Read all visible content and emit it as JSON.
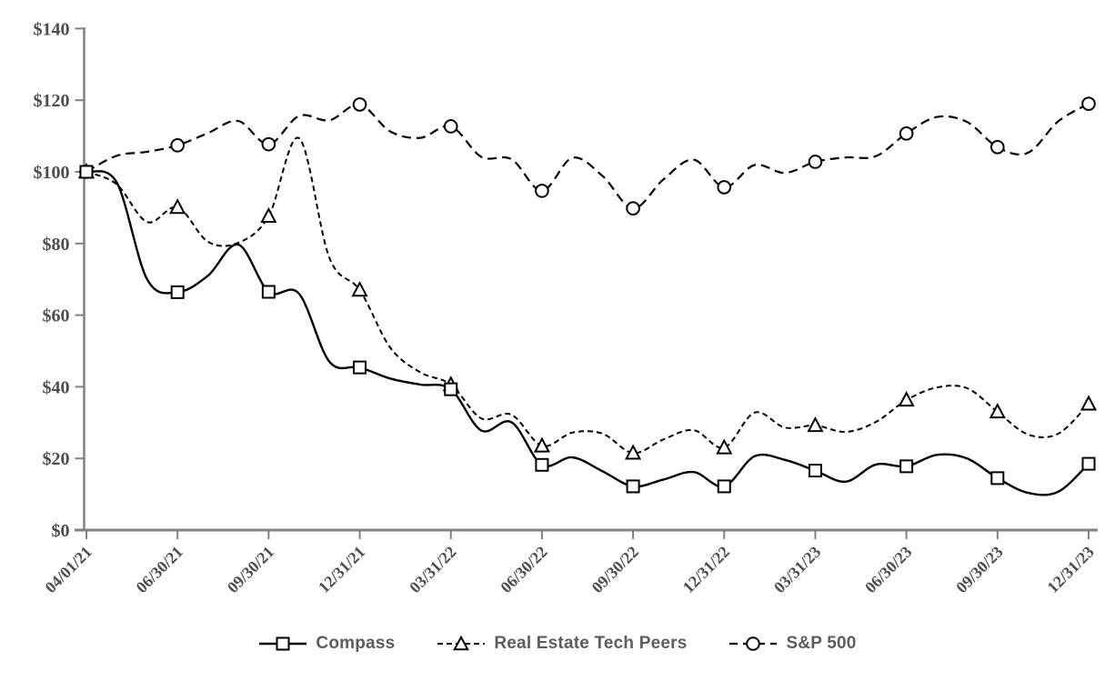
{
  "chart_data": {
    "type": "line",
    "title": "",
    "xlabel": "",
    "ylabel": "",
    "ylim": [
      0,
      140
    ],
    "y_tick_step": 20,
    "y_tick_labels": [
      "$0",
      "$20",
      "$40",
      "$60",
      "$80",
      "$100",
      "$120",
      "$140"
    ],
    "x_tick_labels": [
      "04/01/21",
      "06/30/21",
      "09/30/21",
      "12/31/21",
      "03/31/22",
      "06/30/22",
      "09/30/22",
      "12/31/22",
      "03/31/23",
      "06/30/23",
      "09/30/23",
      "12/31/23"
    ],
    "x_resolution": "monthly",
    "quarter_marker_indices": [
      0,
      3,
      6,
      9,
      12,
      15,
      18,
      21,
      24,
      27,
      30,
      33
    ],
    "grid": "off",
    "legend_position": "bottom-center",
    "series": [
      {
        "name": "Compass",
        "line": "solid",
        "marker": "square",
        "values": [
          100,
          97,
          70,
          66.4,
          71,
          79.7,
          66.5,
          66,
          47,
          45.4,
          42.3,
          40.6,
          39.3,
          27.8,
          30.1,
          18.2,
          20.3,
          16.4,
          12.2,
          14.1,
          16.2,
          12.2,
          20.6,
          19.6,
          16.6,
          13.5,
          18.3,
          17.8,
          21,
          20,
          14.5,
          10.4,
          10.7,
          18.5
        ],
        "quarterly_values": [
          100,
          66.4,
          66.5,
          45.4,
          39.3,
          18.2,
          12.2,
          12.2,
          16.6,
          17.8,
          14.5,
          18.5
        ]
      },
      {
        "name": "Real Estate Tech Peers",
        "line": "dashed",
        "marker": "triangle",
        "values": [
          100,
          96.5,
          86,
          90.1,
          80.5,
          80.2,
          87.6,
          109.4,
          76,
          67,
          51,
          44,
          40.6,
          31.2,
          32.2,
          23.5,
          27.2,
          26.9,
          21.5,
          25.3,
          27.9,
          23,
          32.8,
          28.6,
          29.2,
          27.4,
          30.2,
          36.3,
          39.8,
          39.6,
          33,
          26.7,
          26.9,
          35.2
        ],
        "quarterly_values": [
          100,
          90.1,
          87.6,
          67,
          40.6,
          23.5,
          21.5,
          23,
          29.2,
          36.3,
          33,
          35.2
        ]
      },
      {
        "name": "S&P 500",
        "line": "long-dashed",
        "marker": "circle",
        "values": [
          100,
          104.5,
          105.6,
          107.4,
          110.8,
          114.2,
          107.7,
          115.6,
          114.4,
          118.8,
          111.3,
          109.5,
          112.7,
          104.2,
          103.5,
          94.7,
          103.9,
          98.8,
          89.8,
          97.9,
          103.4,
          95.7,
          101.9,
          99.7,
          102.8,
          104,
          104.4,
          110.7,
          115.3,
          113.9,
          106.9,
          105.3,
          114.1,
          119
        ],
        "quarterly_values": [
          100,
          107.4,
          107.7,
          118.8,
          112.7,
          94.7,
          89.8,
          95.7,
          102.8,
          110.7,
          106.9,
          119
        ]
      }
    ]
  },
  "colors": {
    "series_stroke": "#000000",
    "marker_fill": "#ffffff",
    "axis": "#808080",
    "tick_text": "#4d4d4d",
    "legend_text": "#5d5d5d",
    "background": "#ffffff"
  }
}
